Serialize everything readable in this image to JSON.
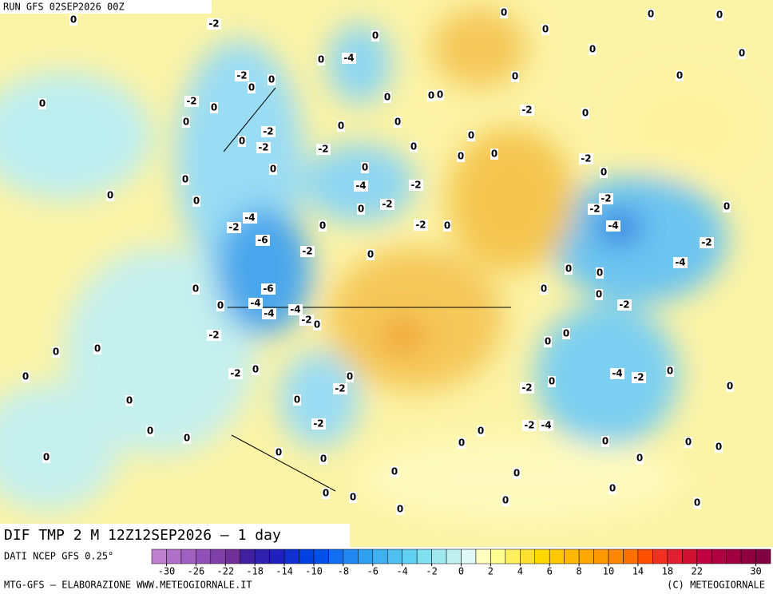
{
  "header": {
    "run": "RUN GFS 02SEP2026 00Z"
  },
  "map": {
    "field_title": "DIF TMP 2 M 12Z12SEP2026 – 1 day",
    "contour_labels": [
      -2,
      0,
      0,
      -4,
      0,
      -2,
      0,
      0,
      -2,
      0,
      0,
      0,
      0,
      -2,
      -2,
      0,
      -2,
      0,
      0,
      -4,
      -2,
      -2,
      0,
      0,
      0,
      0,
      -4,
      -2,
      0,
      -2,
      0,
      -6,
      -2,
      0,
      0,
      -6,
      -4,
      0,
      -4,
      -4,
      -2,
      0,
      -2,
      0,
      0,
      0,
      -2,
      0,
      0,
      -2,
      0,
      0,
      -2,
      0,
      0,
      0,
      0,
      0,
      0,
      0,
      0,
      -2,
      -2,
      -4,
      0,
      0,
      0,
      0,
      0,
      0,
      0,
      -2,
      -4,
      -2,
      0,
      0,
      -4,
      -2,
      -4,
      -2,
      -2,
      -2,
      0,
      0,
      -2,
      0,
      0,
      0,
      0,
      0,
      0,
      0,
      0,
      0,
      0,
      0,
      0,
      0,
      0,
      0,
      0,
      0,
      0,
      0,
      0,
      0,
      0,
      0,
      0,
      0,
      0,
      0,
      0
    ]
  },
  "colorbar": {
    "source": "DATI NCEP GFS 0.25°",
    "ticks": [
      -30,
      -26,
      -22,
      -18,
      -14,
      -10,
      -8,
      -6,
      -4,
      -2,
      0,
      2,
      4,
      6,
      8,
      10,
      14,
      18,
      22,
      30
    ],
    "colors": [
      "#c080d0",
      "#b070c8",
      "#a060c0",
      "#9050b8",
      "#8040a8",
      "#703098",
      "#4020a0",
      "#3020b0",
      "#2020c0",
      "#1030d0",
      "#0040e0",
      "#0050e8",
      "#1070f0",
      "#2088f0",
      "#30a0f0",
      "#40b0f0",
      "#50c0f0",
      "#60d0f0",
      "#80e0f0",
      "#a0e8f0",
      "#c0f0f0",
      "#e0f8f8",
      "#ffffc0",
      "#ffff90",
      "#fff060",
      "#ffe030",
      "#ffd800",
      "#ffc800",
      "#ffb800",
      "#ffa800",
      "#ff9800",
      "#ff8800",
      "#ff7000",
      "#ff5000",
      "#f03020",
      "#e02030",
      "#d01030",
      "#c00040",
      "#b00040",
      "#a00040",
      "#900040",
      "#800040"
    ]
  },
  "footer": {
    "left": "MTG-GFS – ELABORAZIONE WWW.METEOGIORNALE.IT",
    "right": "(C) METEOGIORNALE"
  }
}
